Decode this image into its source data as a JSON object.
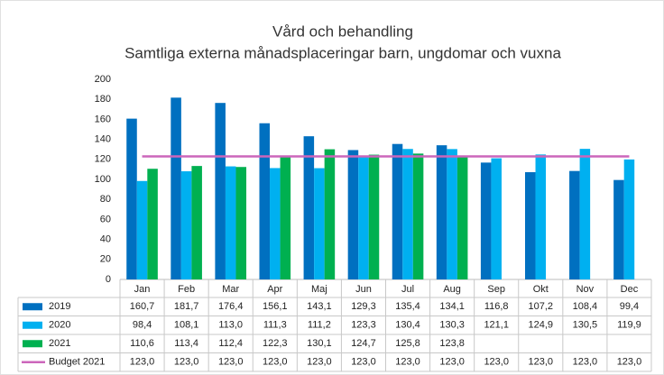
{
  "chart_data": {
    "type": "bar",
    "title": "Vård och behandling",
    "subtitle": "Samtliga externa månadsplaceringar barn, ungdomar och vuxna",
    "categories": [
      "Jan",
      "Feb",
      "Mar",
      "Apr",
      "Maj",
      "Jun",
      "Jul",
      "Aug",
      "Sep",
      "Okt",
      "Nov",
      "Dec"
    ],
    "ylim": [
      0,
      200
    ],
    "yticks": [
      0,
      20,
      40,
      60,
      80,
      100,
      120,
      140,
      160,
      180,
      200
    ],
    "grid": false,
    "series": [
      {
        "name": "2019",
        "color": "#0070c0",
        "type": "bar",
        "values": [
          160.7,
          181.7,
          176.4,
          156.1,
          143.1,
          129.3,
          135.4,
          134.1,
          116.8,
          107.2,
          108.4,
          99.4
        ],
        "value_labels": [
          "160,7",
          "181,7",
          "176,4",
          "156,1",
          "143,1",
          "129,3",
          "135,4",
          "134,1",
          "116,8",
          "107,2",
          "108,4",
          "99,4"
        ]
      },
      {
        "name": "2020",
        "color": "#00b0f0",
        "type": "bar",
        "values": [
          98.4,
          108.1,
          113.0,
          111.3,
          111.2,
          123.3,
          130.4,
          130.3,
          121.1,
          124.9,
          130.5,
          119.9
        ],
        "value_labels": [
          "98,4",
          "108,1",
          "113,0",
          "111,3",
          "111,2",
          "123,3",
          "130,4",
          "130,3",
          "121,1",
          "124,9",
          "130,5",
          "119,9"
        ]
      },
      {
        "name": "2021",
        "color": "#00b050",
        "type": "bar",
        "values": [
          110.6,
          113.4,
          112.4,
          122.3,
          130.1,
          124.7,
          125.8,
          123.8,
          null,
          null,
          null,
          null
        ],
        "value_labels": [
          "110,6",
          "113,4",
          "112,4",
          "122,3",
          "130,1",
          "124,7",
          "125,8",
          "123,8",
          null,
          null,
          null,
          null
        ]
      },
      {
        "name": "Budget 2021",
        "color": "#cc66bb",
        "type": "line",
        "values": [
          123,
          123,
          123,
          123,
          123,
          123,
          123,
          123,
          123,
          123,
          123,
          123
        ],
        "value_labels": [
          "123,0",
          "123,0",
          "123,0",
          "123,0",
          "123,0",
          "123,0",
          "123,0",
          "123,0",
          "123,0",
          "123,0",
          "123,0",
          "123,0"
        ]
      }
    ]
  }
}
